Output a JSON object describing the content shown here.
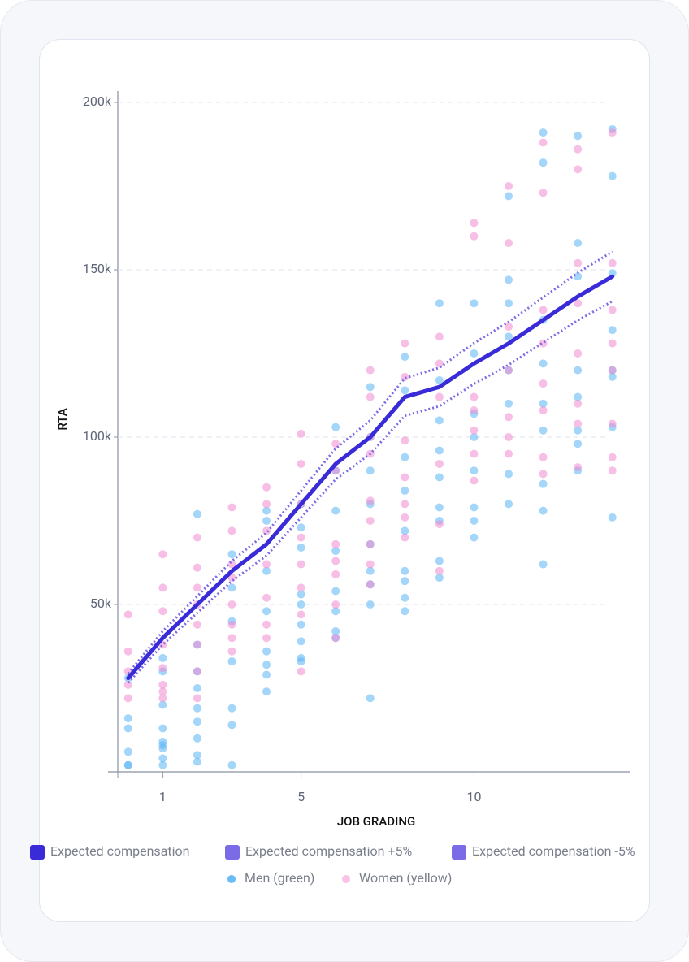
{
  "chart_data": {
    "type": "scatter",
    "xlabel": "JOB GRADING",
    "ylabel": "RTA",
    "xlim": [
      -0.3,
      14.5
    ],
    "xticks": [
      1,
      5,
      10
    ],
    "ylim": [
      0,
      200000
    ],
    "yticks": [
      {
        "value": 50000,
        "label": "50k"
      },
      {
        "value": 100000,
        "label": "100k"
      },
      {
        "value": 150000,
        "label": "150k"
      },
      {
        "value": 200000,
        "label": "200k"
      }
    ],
    "grid": true,
    "series": [
      {
        "name": "Expected compensation",
        "type": "line",
        "style": "solid",
        "color": "#3a2bd8",
        "x": [
          0,
          1,
          2,
          3,
          4,
          5,
          6,
          7,
          8,
          9,
          10,
          11,
          12,
          13,
          14
        ],
        "values": [
          28000,
          40000,
          50000,
          60000,
          68000,
          80000,
          92000,
          100000,
          112000,
          115000,
          122000,
          128000,
          135000,
          142000,
          148000
        ]
      },
      {
        "name": "Expected compensation +5%",
        "type": "line",
        "style": "dotted",
        "color": "#7b6be6",
        "x": [
          0,
          1,
          2,
          3,
          4,
          5,
          6,
          7,
          8,
          9,
          10,
          11,
          12,
          13,
          14
        ],
        "values": [
          29400,
          42000,
          52500,
          63000,
          71400,
          84000,
          96600,
          105000,
          117600,
          120750,
          128100,
          134400,
          141750,
          149100,
          155400
        ]
      },
      {
        "name": "Expected compensation -5%",
        "type": "line",
        "style": "dotted",
        "color": "#7b6be6",
        "x": [
          0,
          1,
          2,
          3,
          4,
          5,
          6,
          7,
          8,
          9,
          10,
          11,
          12,
          13,
          14
        ],
        "values": [
          26600,
          38000,
          47500,
          57000,
          64600,
          76000,
          87400,
          95000,
          106400,
          109250,
          115900,
          121600,
          128250,
          134900,
          140600
        ]
      },
      {
        "name": "Men (green)",
        "type": "scatter",
        "color": "#5ab4f5",
        "x": [
          0,
          0,
          0,
          0,
          0,
          0,
          1,
          1,
          1,
          1,
          1,
          1,
          1,
          1,
          1,
          2,
          2,
          2,
          2,
          2,
          2,
          2,
          2,
          2,
          3,
          3,
          3,
          3,
          3,
          3,
          3,
          4,
          4,
          4,
          4,
          4,
          4,
          4,
          4,
          5,
          5,
          5,
          5,
          5,
          5,
          5,
          5,
          5,
          6,
          6,
          6,
          6,
          6,
          6,
          6,
          6,
          7,
          7,
          7,
          7,
          7,
          7,
          7,
          7,
          7,
          8,
          8,
          8,
          8,
          8,
          8,
          8,
          8,
          8,
          9,
          9,
          9,
          9,
          9,
          9,
          9,
          9,
          9,
          10,
          10,
          10,
          10,
          10,
          10,
          10,
          10,
          11,
          11,
          11,
          11,
          11,
          11,
          11,
          11,
          12,
          12,
          12,
          12,
          12,
          12,
          12,
          12,
          12,
          13,
          13,
          13,
          13,
          13,
          13,
          13,
          13,
          14,
          14,
          14,
          14,
          14,
          14,
          14,
          14
        ],
        "values": [
          2000,
          2000,
          6000,
          13000,
          16000,
          28000,
          2000,
          4000,
          7000,
          8000,
          9000,
          13000,
          20000,
          30000,
          34000,
          3000,
          5000,
          10000,
          15000,
          19000,
          25000,
          30000,
          38000,
          77000,
          2000,
          14000,
          19000,
          33000,
          45000,
          55000,
          65000,
          24000,
          29000,
          32000,
          36000,
          48000,
          60000,
          75000,
          78000,
          33000,
          34000,
          39000,
          44000,
          50000,
          53000,
          67000,
          73000,
          80000,
          40000,
          42000,
          48000,
          54000,
          66000,
          78000,
          90000,
          103000,
          22000,
          50000,
          56000,
          60000,
          68000,
          80000,
          90000,
          100000,
          115000,
          48000,
          52000,
          57000,
          60000,
          72000,
          84000,
          94000,
          114000,
          124000,
          58000,
          63000,
          75000,
          79000,
          88000,
          96000,
          105000,
          117000,
          140000,
          70000,
          75000,
          79000,
          90000,
          100000,
          107000,
          125000,
          140000,
          80000,
          89000,
          110000,
          120000,
          130000,
          140000,
          147000,
          172000,
          62000,
          78000,
          86000,
          102000,
          110000,
          122000,
          135000,
          182000,
          191000,
          90000,
          98000,
          102000,
          112000,
          120000,
          148000,
          158000,
          190000,
          76000,
          103000,
          118000,
          120000,
          132000,
          149000,
          178000,
          192000
        ]
      },
      {
        "name": "Women (yellow)",
        "type": "scatter",
        "color": "#f08ad0",
        "x": [
          0,
          0,
          0,
          0,
          0,
          1,
          1,
          1,
          1,
          1,
          1,
          1,
          1,
          2,
          2,
          2,
          2,
          2,
          2,
          2,
          2,
          3,
          3,
          3,
          3,
          3,
          3,
          3,
          3,
          4,
          4,
          4,
          4,
          4,
          4,
          4,
          5,
          5,
          5,
          5,
          5,
          5,
          5,
          5,
          6,
          6,
          6,
          6,
          6,
          6,
          6,
          7,
          7,
          7,
          7,
          7,
          7,
          7,
          7,
          7,
          8,
          8,
          8,
          8,
          8,
          8,
          8,
          9,
          9,
          9,
          9,
          9,
          9,
          10,
          10,
          10,
          10,
          10,
          10,
          10,
          11,
          11,
          11,
          11,
          11,
          11,
          11,
          12,
          12,
          12,
          12,
          12,
          12,
          12,
          12,
          13,
          13,
          13,
          13,
          13,
          13,
          13,
          13,
          14,
          14,
          14,
          14,
          14,
          14,
          14,
          14
        ],
        "values": [
          22000,
          26000,
          30000,
          36000,
          47000,
          22000,
          24000,
          26000,
          31000,
          38000,
          48000,
          55000,
          65000,
          22000,
          30000,
          38000,
          44000,
          50000,
          55000,
          61000,
          70000,
          36000,
          40000,
          44000,
          50000,
          58000,
          62000,
          72000,
          79000,
          40000,
          44000,
          52000,
          62000,
          72000,
          80000,
          85000,
          30000,
          47000,
          55000,
          62000,
          70000,
          80000,
          92000,
          101000,
          40000,
          50000,
          59000,
          63000,
          68000,
          90000,
          98000,
          56000,
          62000,
          68000,
          75000,
          81000,
          95000,
          100000,
          112000,
          120000,
          70000,
          76000,
          80000,
          88000,
          99000,
          118000,
          128000,
          60000,
          74000,
          92000,
          112000,
          122000,
          130000,
          87000,
          95000,
          102000,
          108000,
          112000,
          160000,
          164000,
          95000,
          100000,
          106000,
          120000,
          133000,
          158000,
          175000,
          89000,
          94000,
          108000,
          116000,
          128000,
          138000,
          173000,
          188000,
          91000,
          104000,
          110000,
          125000,
          140000,
          152000,
          180000,
          186000,
          90000,
          94000,
          104000,
          120000,
          128000,
          138000,
          152000,
          191000
        ]
      }
    ]
  }
}
